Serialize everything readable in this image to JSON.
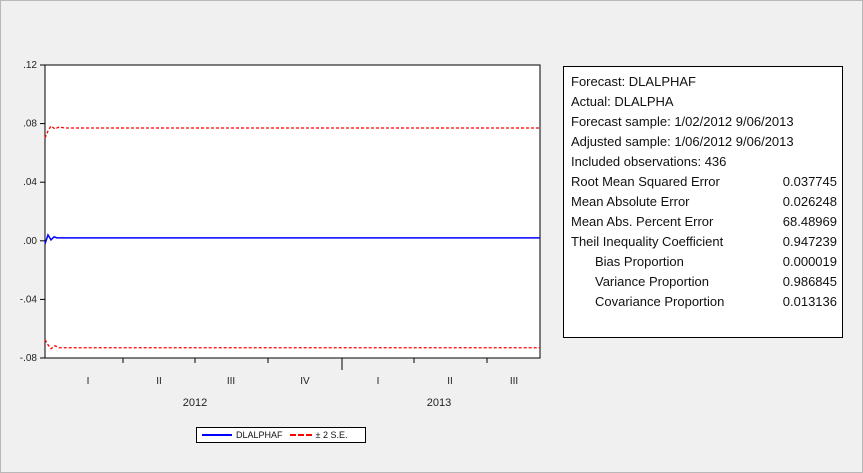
{
  "chart_data": {
    "type": "line",
    "ylim": [
      -0.08,
      0.12
    ],
    "y_ticks": [
      ".12",
      ".08",
      ".04",
      ".00",
      "-.04",
      "-.08"
    ],
    "y_tick_values": [
      0.12,
      0.08,
      0.04,
      0.0,
      -0.04,
      -0.08
    ],
    "x_quarters": [
      "I",
      "II",
      "III",
      "IV",
      "I",
      "II",
      "III"
    ],
    "x_years": [
      "2012",
      "2013"
    ],
    "series": [
      {
        "name": "DLALPHAF",
        "color": "#0000ff",
        "style": "solid",
        "level": 0.002
      },
      {
        "name": "± 2 S.E.",
        "color": "#ff0000",
        "style": "dashed",
        "upper": 0.077,
        "lower": -0.073
      }
    ],
    "grid": false,
    "legend_position": "bottom"
  },
  "stats": {
    "forecast": "Forecast: DLALPHAF",
    "actual": "Actual: DLALPHA",
    "forecast_sample": "Forecast sample: 1/02/2012 9/06/2013",
    "adjusted_sample": "Adjusted sample: 1/06/2012 9/06/2013",
    "included_obs": "Included observations: 436",
    "rows": [
      {
        "label": "Root Mean Squared Error",
        "value": "0.037745"
      },
      {
        "label": "Mean Absolute Error",
        "value": "0.026248"
      },
      {
        "label": "Mean Abs. Percent Error",
        "value": "68.48969"
      },
      {
        "label": "Theil Inequality Coefficient",
        "value": "0.947239"
      }
    ],
    "proportions": [
      {
        "label": "Bias Proportion",
        "value": "0.000019"
      },
      {
        "label": "Variance Proportion",
        "value": "0.986845"
      },
      {
        "label": "Covariance Proportion",
        "value": "0.013136"
      }
    ]
  },
  "legend": {
    "item1": "DLALPHAF",
    "item2": "± 2 S.E."
  }
}
